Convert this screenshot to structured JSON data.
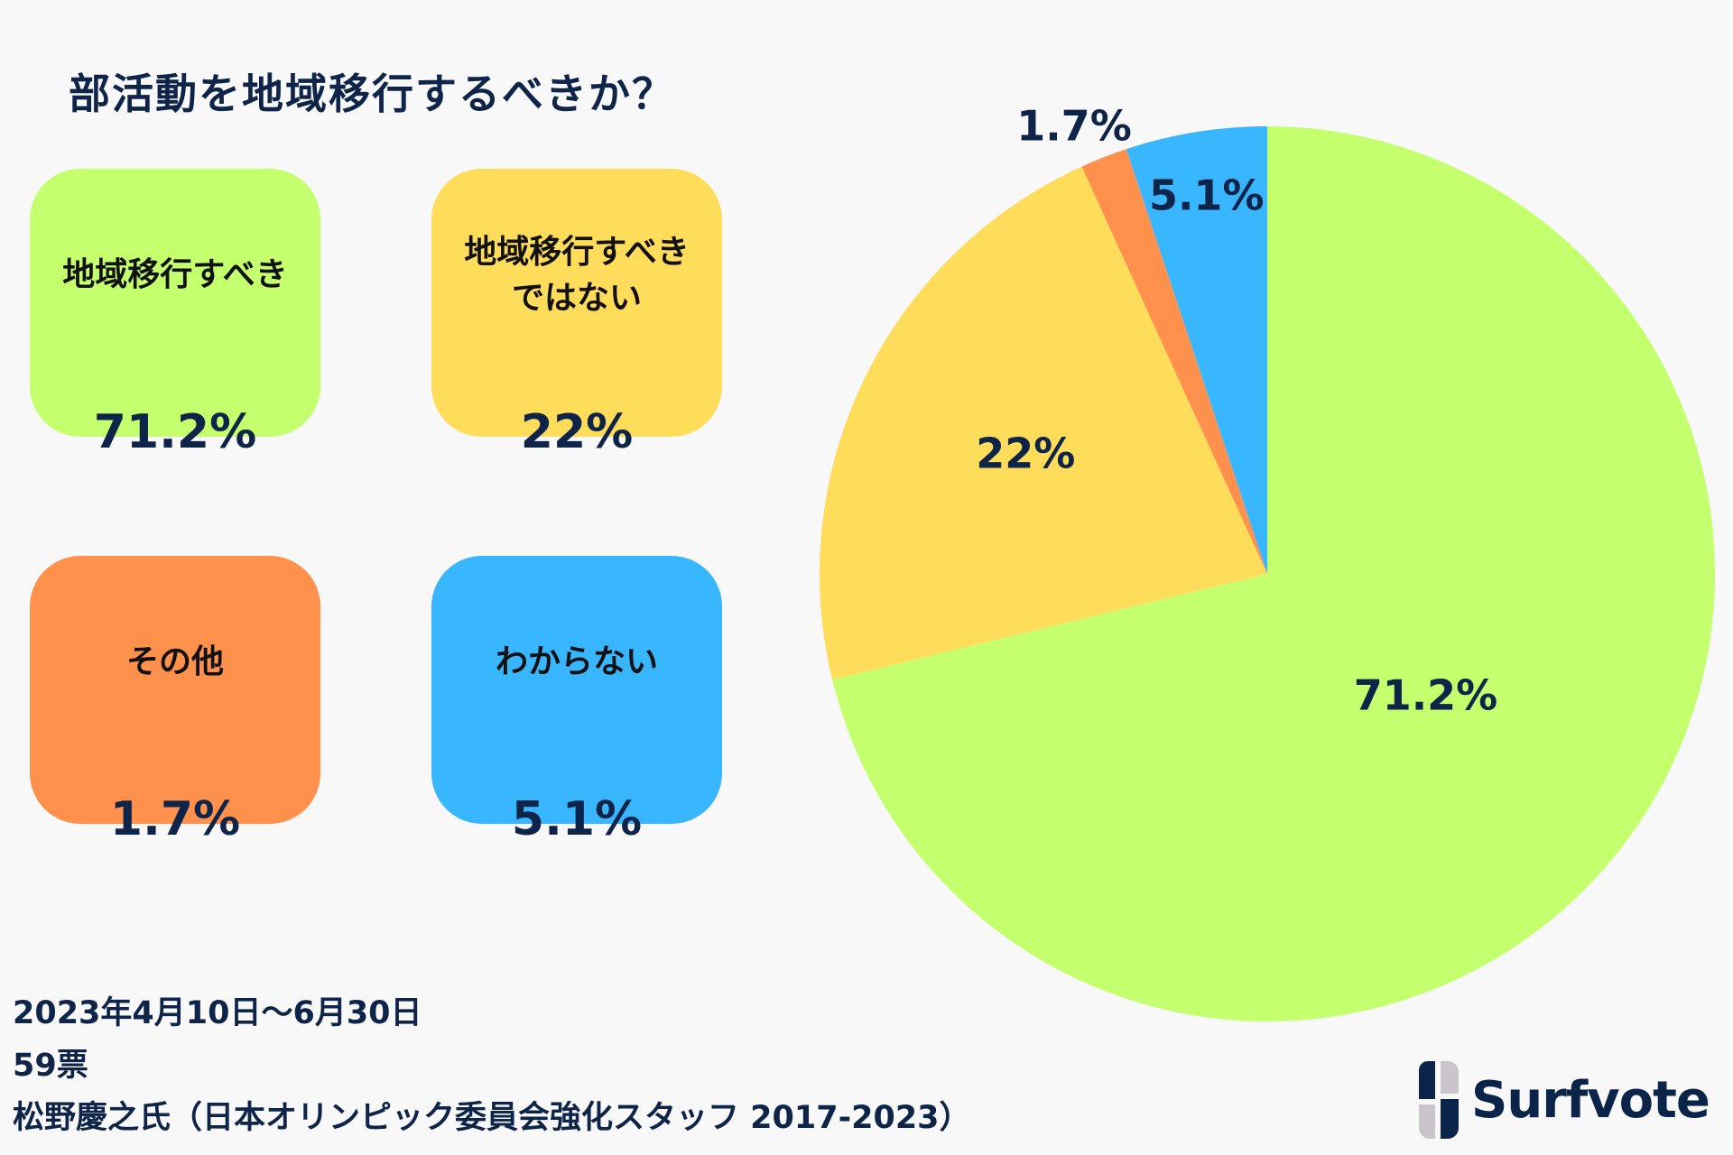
{
  "title": "部活動を地域移行するべきか？",
  "colors": {
    "navy": "#0e2448"
  },
  "chart_data": {
    "type": "pie",
    "title": "部活動を地域移行するべきか？",
    "start": "top",
    "direction": "clockwise",
    "slices": [
      {
        "label": "地域移行すべき",
        "value": 71.2,
        "display": "71.2%",
        "color": "#c4ff6e"
      },
      {
        "label": "地域移行すべきではない",
        "value": 22,
        "display": "22%",
        "color": "#ffdc5a"
      },
      {
        "label": "その他",
        "value": 1.7,
        "display": "1.7%",
        "color": "#ff914d"
      },
      {
        "label": "わからない",
        "value": 5.1,
        "display": "5.1%",
        "color": "#38b6ff"
      }
    ]
  },
  "legend": [
    {
      "label": "地域移行すべき",
      "pct": "71.2%"
    },
    {
      "label": "地域移行すべき\nではない",
      "pct": "22%"
    },
    {
      "label": "その他",
      "pct": "1.7%"
    },
    {
      "label": "わからない",
      "pct": "5.1%"
    }
  ],
  "footer": {
    "period": "2023年4月10日〜6月30日",
    "votes": "59票",
    "source": "松野慶之氏（日本オリンピック委員会強化スタッフ 2017-2023）"
  },
  "logo": {
    "text": "Surfvote"
  }
}
